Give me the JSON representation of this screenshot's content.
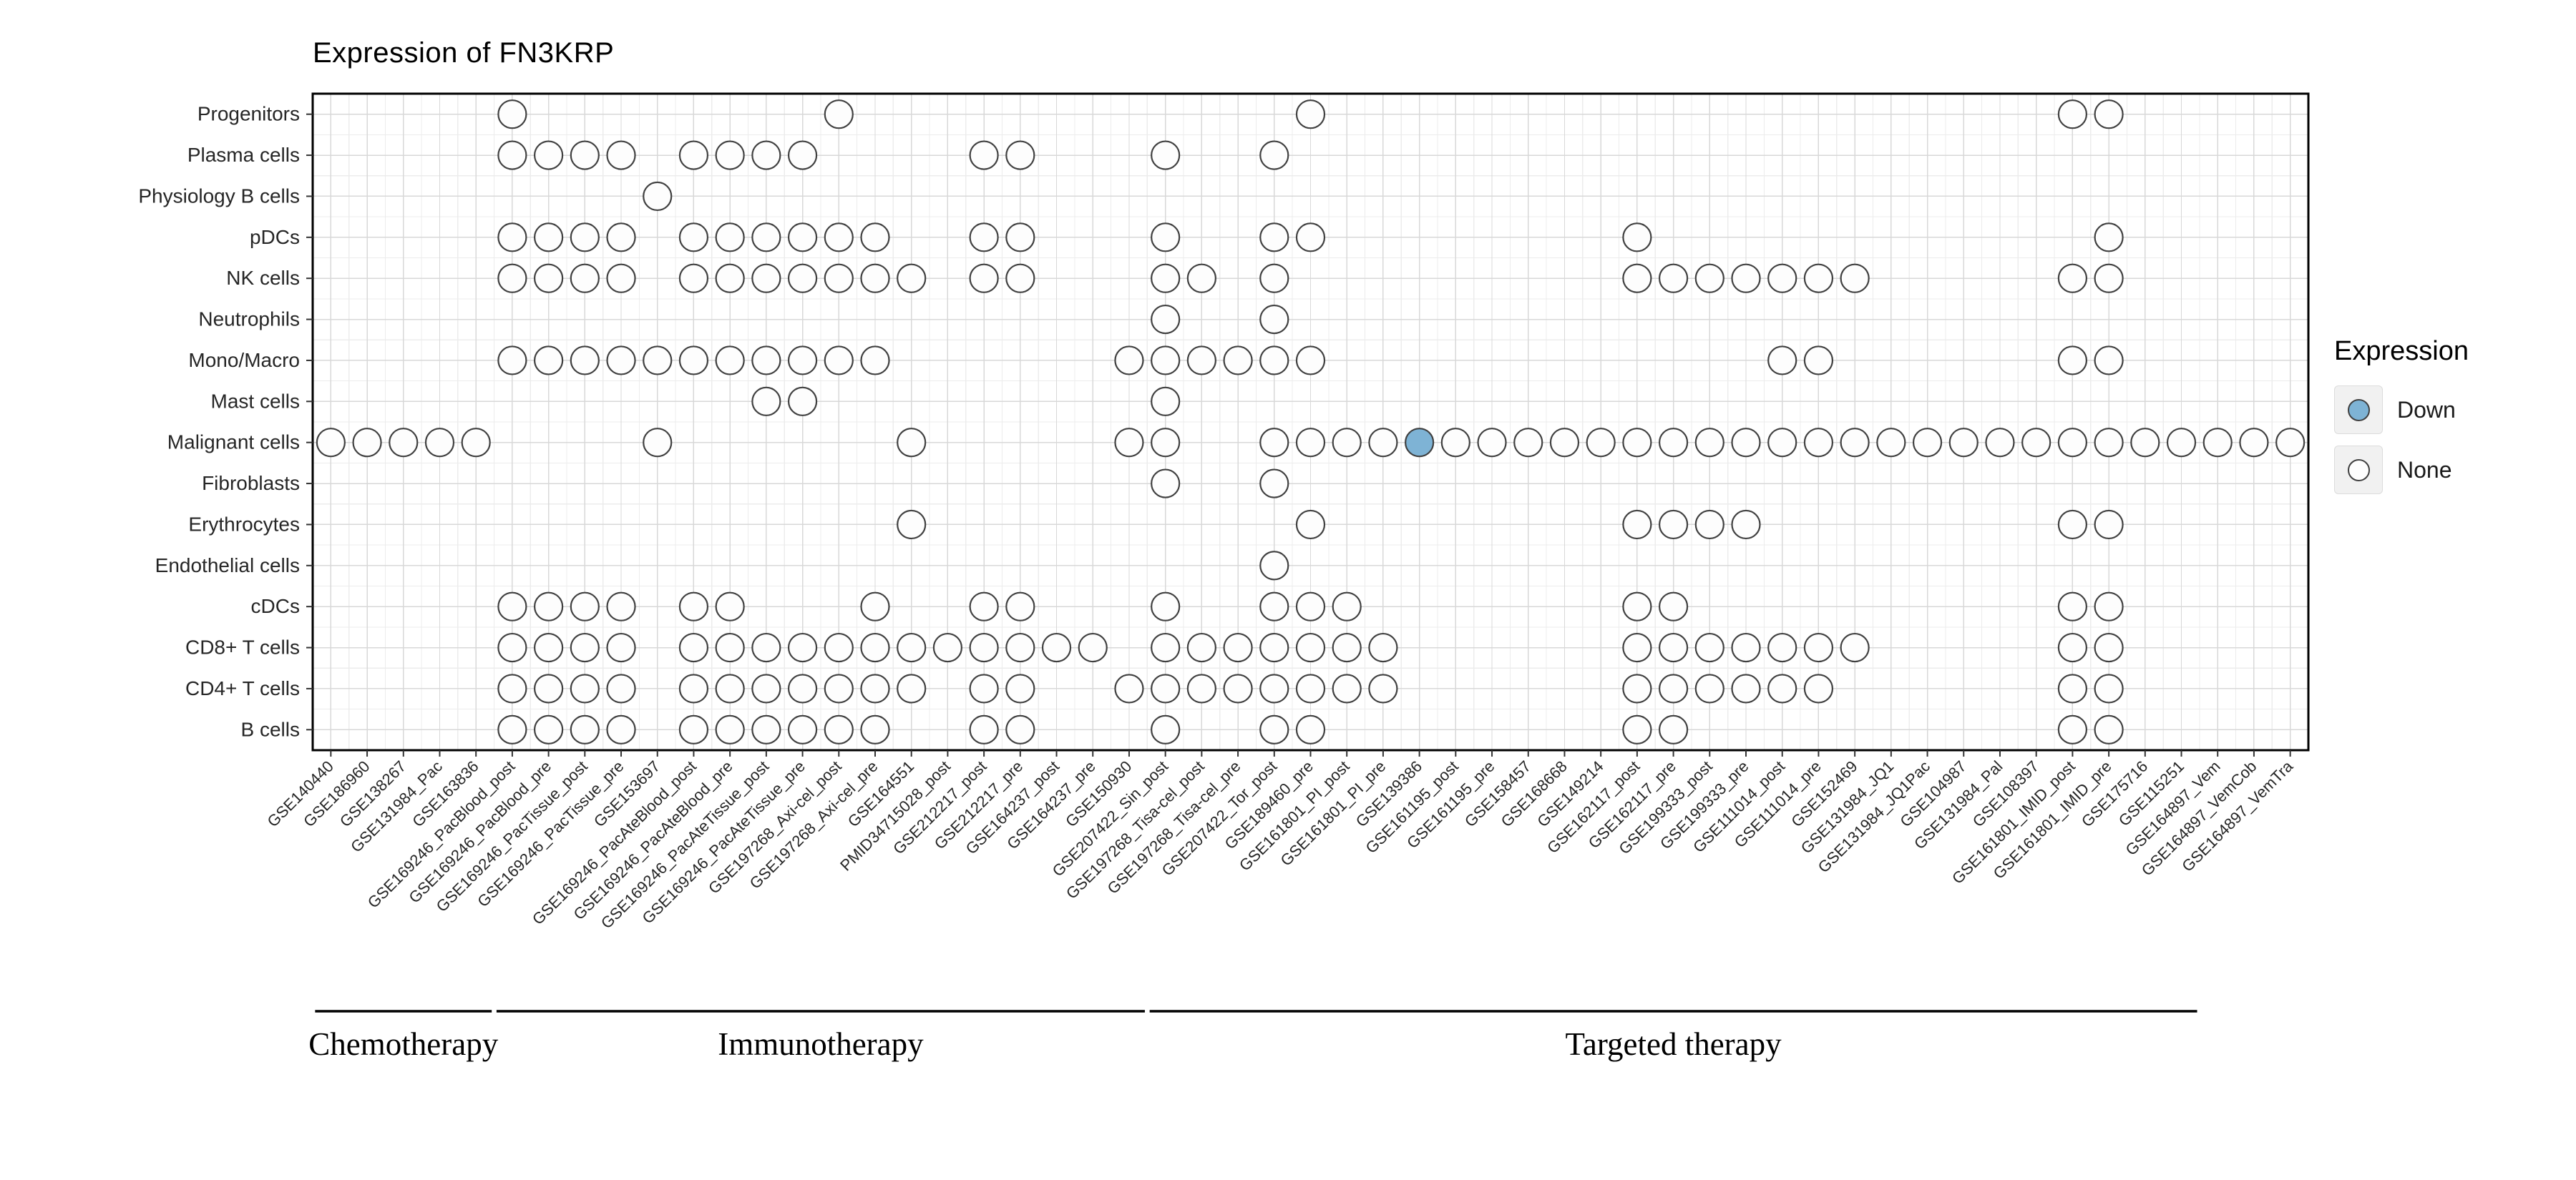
{
  "chart_data": {
    "type": "scatter",
    "title": "Expression of FN3KRP",
    "xlabel": "",
    "ylabel": "",
    "grid": true,
    "legend": {
      "title": "Expression",
      "position": "right",
      "entries": [
        {
          "label": "Down",
          "color": "#7EB3D5"
        },
        {
          "label": "None",
          "color": "#FDFDFD"
        }
      ]
    },
    "cell_types": [
      "Progenitors",
      "Plasma cells",
      "Physiology B cells",
      "pDCs",
      "NK cells",
      "Neutrophils",
      "Mono/Macro",
      "Mast cells",
      "Malignant cells",
      "Fibroblasts",
      "Erythrocytes",
      "Endothelial cells",
      "cDCs",
      "CD8+ T cells",
      "CD4+ T cells",
      "B cells"
    ],
    "datasets": [
      "GSE140440",
      "GSE186960",
      "GSE138267",
      "GSE131984_Pac",
      "GSE163836",
      "GSE169246_PacBlood_post",
      "GSE169246_PacBlood_pre",
      "GSE169246_PacTissue_post",
      "GSE169246_PacTissue_pre",
      "GSE153697",
      "GSE169246_PacAteBlood_post",
      "GSE169246_PacAteBlood_pre",
      "GSE169246_PacAteTissue_post",
      "GSE169246_PacAteTissue_pre",
      "GSE197268_Axi-cel_post",
      "GSE197268_Axi-cel_pre",
      "GSE164551",
      "PMID34715028_post",
      "GSE212217_post",
      "GSE212217_pre",
      "GSE164237_post",
      "GSE164237_pre",
      "GSE150930",
      "GSE207422_Sin_post",
      "GSE197268_Tisa-cel_post",
      "GSE197268_Tisa-cel_pre",
      "GSE207422_Tor_post",
      "GSE189460_pre",
      "GSE161801_PI_post",
      "GSE161801_PI_pre",
      "GSE139386",
      "GSE161195_post",
      "GSE161195_pre",
      "GSE158457",
      "GSE168668",
      "GSE149214",
      "GSE162117_post",
      "GSE162117_pre",
      "GSE199333_post",
      "GSE199333_pre",
      "GSE111014_post",
      "GSE111014_pre",
      "GSE152469",
      "GSE131984_JQ1",
      "GSE131984_JQ1Pac",
      "GSE104987",
      "GSE131984_Pal",
      "GSE108397",
      "GSE161801_IMID_post",
      "GSE161801_IMID_pre",
      "GSE175716",
      "GSE115251",
      "GSE164897_Vem",
      "GSE164897_VemCob",
      "GSE164897_VemTra"
    ],
    "therapy_groups": [
      {
        "label": "Chemotherapy",
        "start_index": 0,
        "end_index": 4
      },
      {
        "label": "Immunotherapy",
        "start_index": 5,
        "end_index": 22
      },
      {
        "label": "Targeted therapy",
        "start_index": 23,
        "end_index": 51
      }
    ],
    "points_none": {
      "Progenitors": [
        5,
        14,
        27,
        48,
        49
      ],
      "Plasma cells": [
        5,
        6,
        7,
        8,
        10,
        11,
        12,
        13,
        18,
        19,
        23,
        26
      ],
      "Physiology B cells": [
        9
      ],
      "pDCs": [
        5,
        6,
        7,
        8,
        10,
        11,
        12,
        13,
        14,
        15,
        18,
        19,
        23,
        26,
        27,
        36,
        49
      ],
      "NK cells": [
        5,
        6,
        7,
        8,
        10,
        11,
        12,
        13,
        14,
        15,
        16,
        18,
        19,
        23,
        24,
        26,
        36,
        37,
        38,
        39,
        40,
        41,
        42,
        48,
        49
      ],
      "Neutrophils": [
        23,
        26
      ],
      "Mono/Macro": [
        5,
        6,
        7,
        8,
        9,
        10,
        11,
        12,
        13,
        14,
        15,
        22,
        23,
        24,
        25,
        26,
        27,
        40,
        41,
        48,
        49
      ],
      "Mast cells": [
        12,
        13,
        23
      ],
      "Malignant cells": [
        0,
        1,
        2,
        3,
        4,
        9,
        16,
        22,
        23,
        26,
        27,
        28,
        29,
        31,
        32,
        33,
        34,
        35,
        36,
        37,
        38,
        39,
        40,
        41,
        42,
        43,
        44,
        45,
        46,
        47,
        48,
        49,
        50,
        51,
        52,
        53,
        54
      ],
      "Fibroblasts": [
        23,
        26
      ],
      "Erythrocytes": [
        16,
        27,
        36,
        37,
        38,
        39,
        48,
        49
      ],
      "Endothelial cells": [
        26
      ],
      "cDCs": [
        5,
        6,
        7,
        8,
        10,
        11,
        15,
        18,
        19,
        23,
        26,
        27,
        28,
        36,
        37,
        48,
        49
      ],
      "CD8+ T cells": [
        5,
        6,
        7,
        8,
        10,
        11,
        12,
        13,
        14,
        15,
        16,
        17,
        18,
        19,
        20,
        21,
        23,
        24,
        25,
        26,
        27,
        28,
        29,
        36,
        37,
        38,
        39,
        40,
        41,
        42,
        48,
        49
      ],
      "CD4+ T cells": [
        5,
        6,
        7,
        8,
        10,
        11,
        12,
        13,
        14,
        15,
        16,
        18,
        19,
        22,
        23,
        24,
        25,
        26,
        27,
        28,
        29,
        36,
        37,
        38,
        39,
        40,
        41,
        48,
        49
      ],
      "B cells": [
        5,
        6,
        7,
        8,
        10,
        11,
        12,
        13,
        14,
        15,
        18,
        19,
        23,
        26,
        27,
        36,
        37,
        48,
        49
      ]
    },
    "points_down": [
      {
        "cell_type": "Malignant cells",
        "dataset": "GSE139386"
      }
    ],
    "colors": {
      "dot_fill": "#FDFDFD",
      "dot_stroke": "#404040",
      "down_fill": "#7EB3D5",
      "grid_major": "#D8D8D8",
      "grid_minor": "#ECECEC",
      "panel_border": "#000000",
      "axis_text": "#262626"
    }
  }
}
